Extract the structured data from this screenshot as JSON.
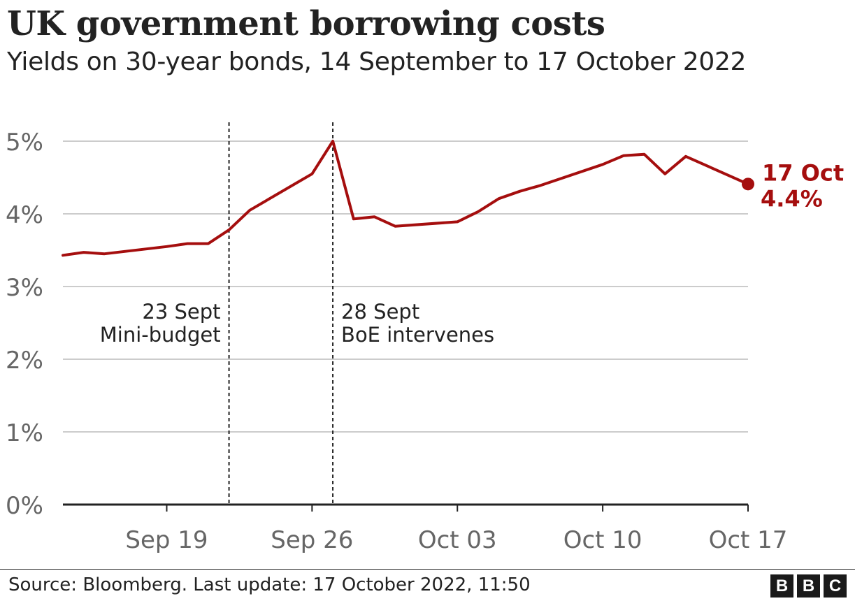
{
  "header": {
    "title": "UK government borrowing costs",
    "subtitle": "Yields on 30-year bonds, 14 September to 17 October 2022"
  },
  "footer": {
    "source": "Source: Bloomberg. Last update: 17 October 2022, 11:50",
    "logo_letters": [
      "B",
      "B",
      "C"
    ]
  },
  "colors": {
    "line": "#a50e0e",
    "grid": "#cccccc",
    "axis": "#222222",
    "tick_text": "#666666",
    "annotation_line": "#222222"
  },
  "chart_data": {
    "type": "line",
    "title": "UK government borrowing costs",
    "subtitle": "Yields on 30-year bonds, 14 September to 17 October 2022",
    "ylim": [
      0,
      5
    ],
    "y_ticks": [
      0,
      1,
      2,
      3,
      4,
      5
    ],
    "y_tick_labels": [
      "0%",
      "1%",
      "2%",
      "3%",
      "4%",
      "5%"
    ],
    "x_range": [
      "2022-09-14",
      "2022-10-17"
    ],
    "x_ticks": [
      "2022-09-19",
      "2022-09-26",
      "2022-10-03",
      "2022-10-10",
      "2022-10-17"
    ],
    "x_tick_labels": [
      "Sep 19",
      "Sep 26",
      "Oct 03",
      "Oct 10",
      "Oct 17"
    ],
    "grid": true,
    "series": [
      {
        "points": [
          {
            "x": "2022-09-14",
            "y": 3.43
          },
          {
            "x": "2022-09-15",
            "y": 3.47
          },
          {
            "x": "2022-09-16",
            "y": 3.45
          },
          {
            "x": "2022-09-19",
            "y": 3.55
          },
          {
            "x": "2022-09-20",
            "y": 3.59
          },
          {
            "x": "2022-09-21",
            "y": 3.59
          },
          {
            "x": "2022-09-22",
            "y": 3.78
          },
          {
            "x": "2022-09-23",
            "y": 4.05
          },
          {
            "x": "2022-09-26",
            "y": 4.55
          },
          {
            "x": "2022-09-27",
            "y": 5.0
          },
          {
            "x": "2022-09-28",
            "y": 3.93
          },
          {
            "x": "2022-09-29",
            "y": 3.96
          },
          {
            "x": "2022-09-30",
            "y": 3.83
          },
          {
            "x": "2022-10-03",
            "y": 3.89
          },
          {
            "x": "2022-10-04",
            "y": 4.03
          },
          {
            "x": "2022-10-05",
            "y": 4.21
          },
          {
            "x": "2022-10-06",
            "y": 4.31
          },
          {
            "x": "2022-10-07",
            "y": 4.39
          },
          {
            "x": "2022-10-10",
            "y": 4.68
          },
          {
            "x": "2022-10-11",
            "y": 4.8
          },
          {
            "x": "2022-10-12",
            "y": 4.82
          },
          {
            "x": "2022-10-13",
            "y": 4.55
          },
          {
            "x": "2022-10-14",
            "y": 4.79
          },
          {
            "x": "2022-10-17",
            "y": 4.41
          }
        ]
      }
    ],
    "annotations": [
      {
        "x": "2022-09-22",
        "line1": "23 Sept",
        "line2": "Mini-budget",
        "align": "right"
      },
      {
        "x": "2022-09-27",
        "line1": "28 Sept",
        "line2": "BoE intervenes",
        "align": "left"
      }
    ],
    "end_label": {
      "line1": "17 Oct",
      "line2": "4.4%"
    }
  }
}
